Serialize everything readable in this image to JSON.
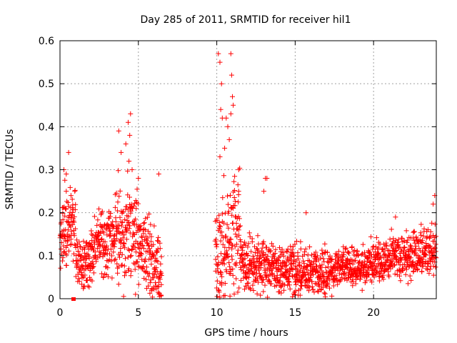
{
  "chart_data": {
    "type": "scatter",
    "title": "Day 285 of 2011, SRMTID for receiver hil1",
    "xlabel": "GPS time / hours",
    "ylabel": "SRMTID / TECUs",
    "xlim": [
      0,
      24
    ],
    "ylim": [
      0,
      0.6
    ],
    "xticks": [
      0,
      5,
      10,
      15,
      20
    ],
    "yticks": [
      0,
      0.1,
      0.2,
      0.3,
      0.4,
      0.5,
      0.6
    ],
    "xtick_labels": [
      "0",
      "5",
      "10",
      "15",
      "20"
    ],
    "ytick_labels": [
      "0",
      "0.1",
      "0.2",
      "0.3",
      "0.4",
      "0.5",
      "0.6"
    ],
    "grid": true,
    "marker": "+",
    "color": "#ff0000",
    "series": [
      {
        "name": "SRMTID",
        "segments": [
          {
            "x_range": [
              0.0,
              1.0
            ],
            "base": [
              0.15,
              0.18
            ],
            "spread": 0.07
          },
          {
            "x_range": [
              1.0,
              2.0
            ],
            "base": [
              0.09,
              0.08
            ],
            "spread": 0.05
          },
          {
            "x_range": [
              2.0,
              3.5
            ],
            "base": [
              0.11,
              0.14
            ],
            "spread": 0.07
          },
          {
            "x_range": [
              3.5,
              5.0
            ],
            "base": [
              0.15,
              0.15
            ],
            "spread": 0.1
          },
          {
            "x_range": [
              5.0,
              6.5
            ],
            "base": [
              0.12,
              0.06
            ],
            "spread": 0.08
          },
          {
            "x_range": [
              9.9,
              11.5
            ],
            "base": [
              0.1,
              0.15
            ],
            "spread": 0.12
          },
          {
            "x_range": [
              11.5,
              13.5
            ],
            "base": [
              0.09,
              0.07
            ],
            "spread": 0.06
          },
          {
            "x_range": [
              13.5,
              17.0
            ],
            "base": [
              0.07,
              0.06
            ],
            "spread": 0.05
          },
          {
            "x_range": [
              17.0,
              20.0
            ],
            "base": [
              0.06,
              0.08
            ],
            "spread": 0.04
          },
          {
            "x_range": [
              20.0,
              24.0
            ],
            "base": [
              0.09,
              0.11
            ],
            "spread": 0.05
          }
        ],
        "outliers": [
          [
            0.4,
            0.25
          ],
          [
            0.25,
            0.3
          ],
          [
            0.55,
            0.34
          ],
          [
            0.4,
            0.29
          ],
          [
            0.7,
            0.24
          ],
          [
            3.75,
            0.39
          ],
          [
            3.9,
            0.34
          ],
          [
            4.2,
            0.36
          ],
          [
            4.35,
            0.41
          ],
          [
            4.5,
            0.43
          ],
          [
            4.45,
            0.38
          ],
          [
            4.6,
            0.3
          ],
          [
            5.0,
            0.28
          ],
          [
            6.3,
            0.29
          ],
          [
            4.4,
            0.32
          ],
          [
            10.1,
            0.57
          ],
          [
            10.2,
            0.55
          ],
          [
            10.3,
            0.5
          ],
          [
            10.9,
            0.57
          ],
          [
            10.95,
            0.52
          ],
          [
            10.25,
            0.44
          ],
          [
            10.35,
            0.42
          ],
          [
            10.7,
            0.4
          ],
          [
            10.8,
            0.37
          ],
          [
            11.0,
            0.47
          ],
          [
            11.05,
            0.45
          ],
          [
            10.6,
            0.42
          ],
          [
            10.5,
            0.35
          ],
          [
            10.2,
            0.33
          ],
          [
            10.9,
            0.43
          ],
          [
            13.1,
            0.28
          ],
          [
            13.2,
            0.28
          ],
          [
            13.0,
            0.25
          ],
          [
            11.4,
            0.3
          ],
          [
            23.9,
            0.24
          ],
          [
            23.8,
            0.22
          ],
          [
            21.4,
            0.19
          ],
          [
            15.7,
            0.2
          ]
        ]
      }
    ]
  }
}
